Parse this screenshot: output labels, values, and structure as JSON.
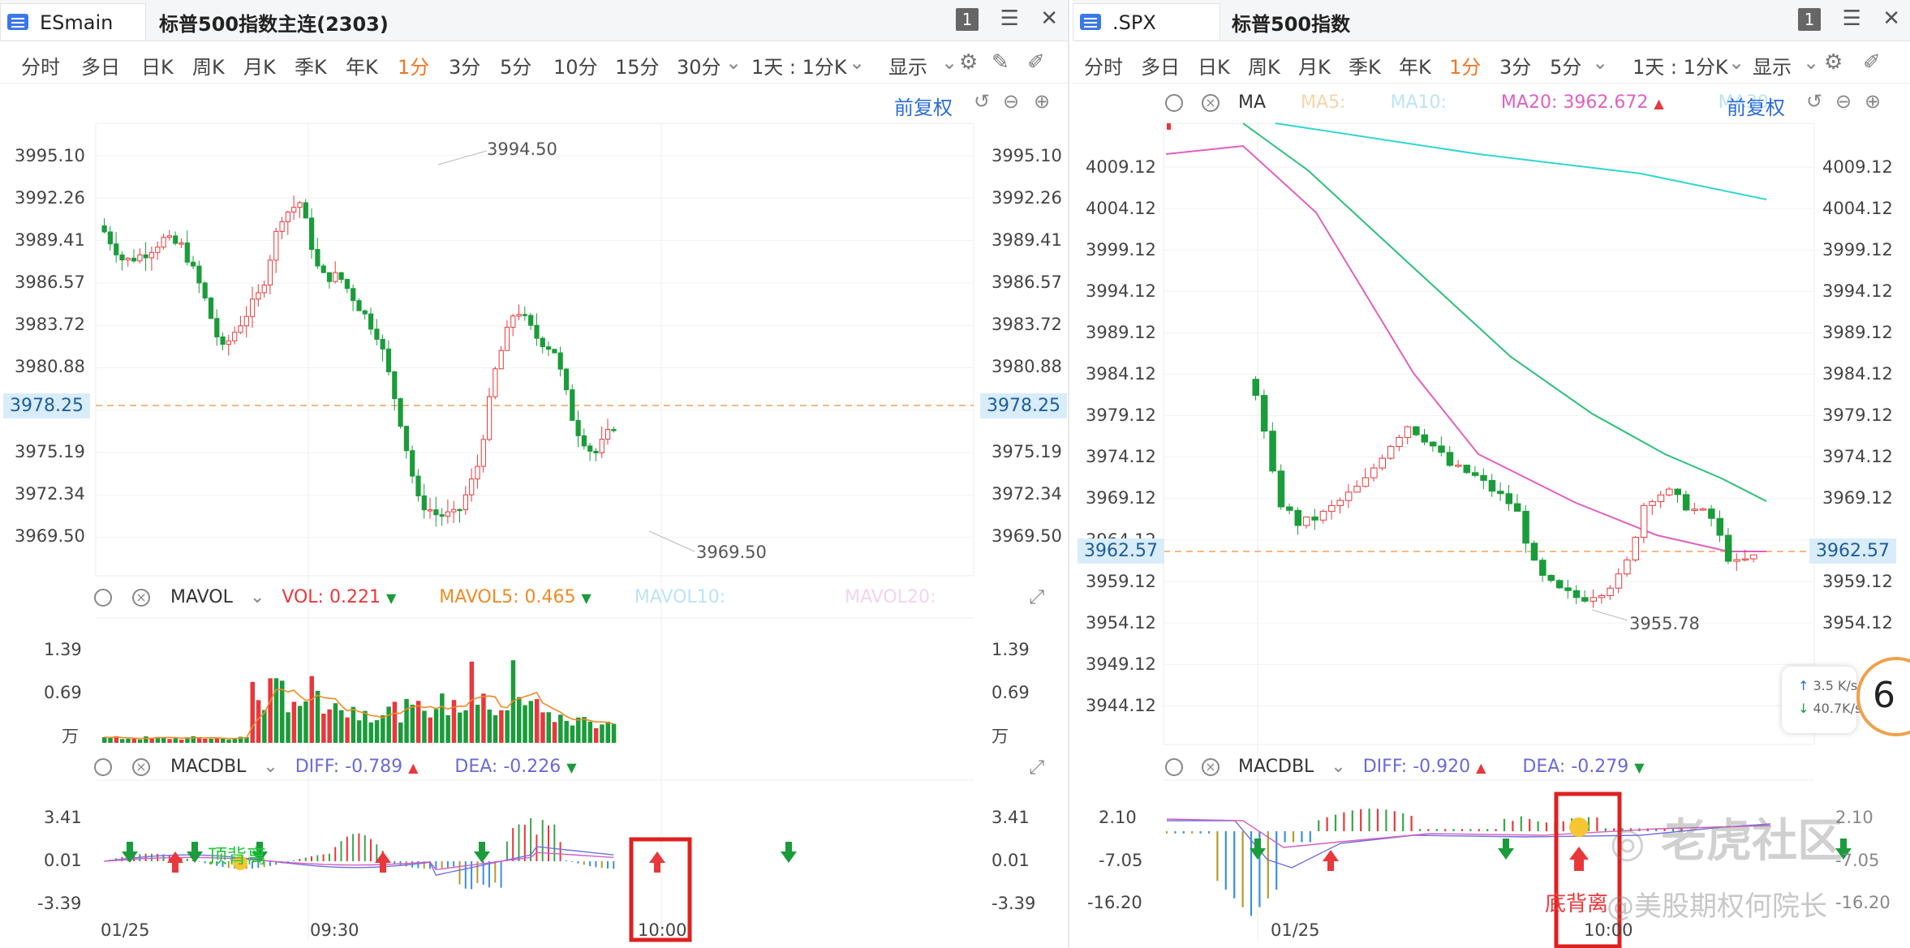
{
  "left": {
    "tab_symbol": "ESmain",
    "title": "标普500指数主连(2303)",
    "badge": "1",
    "periods": [
      "分时",
      "多日",
      "日K",
      "周K",
      "月K",
      "季K",
      "年K",
      "1分",
      "3分",
      "5分",
      "10分",
      "15分",
      "30分"
    ],
    "active_period": "1分",
    "range": "1天 : 1分K",
    "display": "显示",
    "adjust": "前复权",
    "price_ticks": [
      "3995.10",
      "3992.26",
      "3989.41",
      "3986.57",
      "3983.72",
      "3980.88",
      "3978.25",
      "3975.19",
      "3972.34",
      "3969.50"
    ],
    "current_price": "3978.25",
    "high_label": "3994.50",
    "low_label": "3969.50",
    "vol": {
      "name": "MAVOL",
      "vol_label": "VOL:",
      "vol_value": "0.221",
      "mavol5_label": "MAVOL5:",
      "mavol5_value": "0.465",
      "mavol10_label": "MAVOL10:",
      "mavol20_label": "MAVOL20:"
    },
    "vol_ticks": [
      "1.39",
      "0.69",
      "万"
    ],
    "macd": {
      "name": "MACDBL",
      "diff_label": "DIFF:",
      "diff_value": "-0.789",
      "dea_label": "DEA:",
      "dea_value": "-0.226"
    },
    "macd_ticks": [
      "3.41",
      "0.01",
      "-3.39"
    ],
    "time_labels": [
      "01/25",
      "09:30",
      "10:00"
    ],
    "annotation": "顶背离"
  },
  "right": {
    "tab_symbol": ".SPX",
    "title": "标普500指数",
    "badge": "1",
    "periods": [
      "分时",
      "多日",
      "日K",
      "周K",
      "月K",
      "季K",
      "年K",
      "1分",
      "3分",
      "5分"
    ],
    "active_period": "1分",
    "range": "1天 : 1分K",
    "display": "显示",
    "adjust": "前复权",
    "ma": {
      "name": "MA",
      "ma5_label": "MA5:",
      "ma10_label": "MA10:",
      "ma20_label": "MA20:",
      "ma20_value": "3962.672",
      "ma30_label": "MA30:"
    },
    "price_ticks": [
      "4009.12",
      "4004.12",
      "3999.12",
      "3994.12",
      "3989.12",
      "3984.12",
      "3979.12",
      "3974.12",
      "3969.12",
      "3964.12",
      "3959.12",
      "3954.12",
      "3949.12",
      "3944.12"
    ],
    "current_price": "3962.57",
    "low_label": "3955.78",
    "macd": {
      "name": "MACDBL",
      "diff_label": "DIFF:",
      "diff_value": "-0.920",
      "dea_label": "DEA:",
      "dea_value": "-0.279"
    },
    "macd_ticks": [
      "2.10",
      "-7.05",
      "-16.20"
    ],
    "time_labels": [
      "01/25",
      "10:00"
    ],
    "annotation": "底背离",
    "speed_up": "3.5 K/s",
    "speed_down": "40.7K/s",
    "circle": "6"
  },
  "watermark": {
    "community": "老虎社区",
    "author": "@美股期权何院长"
  },
  "colors": {
    "up": "#e8383c",
    "down": "#1a9c3a",
    "accent": "#f5751f",
    "link": "#2b6cd4",
    "box": "#e02020",
    "ma5": "#f5c48a",
    "ma10": "#9dd6f0",
    "ma20": "#e060c0",
    "ma30": "#2fd6d0",
    "mavol5": "#f08a24"
  }
}
